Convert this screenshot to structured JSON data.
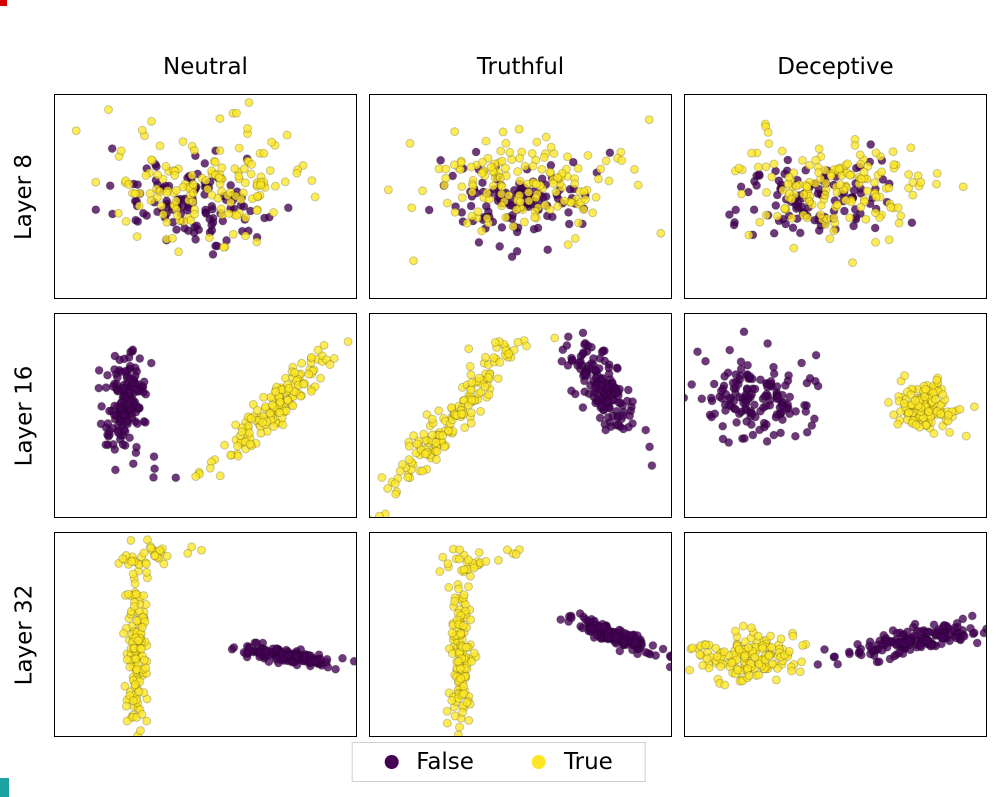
{
  "figure": {
    "columns": [
      "Neutral",
      "Truthful",
      "Deceptive"
    ],
    "rows": [
      "Layer 8",
      "Layer 16",
      "Layer 32"
    ]
  },
  "legend": {
    "items": [
      {
        "label": "False",
        "color": "#440154"
      },
      {
        "label": "True",
        "color": "#fde725"
      }
    ]
  },
  "artifacts": {
    "top_left_color": "#d40000",
    "bottom_left_color": "#1ba3a3"
  },
  "chart_data": {
    "type": "scatter",
    "title": "",
    "grid_cols": [
      "Neutral",
      "Truthful",
      "Deceptive"
    ],
    "grid_rows": [
      "Layer 8",
      "Layer 16",
      "Layer 32"
    ],
    "axes": {
      "ticks": false,
      "tick_labels": false,
      "grid": false
    },
    "legend_position": "bottom-center",
    "series_colors": {
      "False": "#440154",
      "True": "#fde725"
    },
    "marker": {
      "radius": 4,
      "fill_opacity": 0.78,
      "edge_opacity": 0.2
    },
    "panels": [
      {
        "row": "Layer 8",
        "col": "Neutral",
        "clusters": [
          {
            "series": "False",
            "n": 115,
            "cx": 0.46,
            "cy": 0.54,
            "sx": 0.135,
            "sy": 0.1,
            "angle": 0
          },
          {
            "series": "True",
            "n": 155,
            "cx": 0.5,
            "cy": 0.43,
            "sx": 0.165,
            "sy": 0.125,
            "angle": 0
          }
        ]
      },
      {
        "row": "Layer 8",
        "col": "Truthful",
        "clusters": [
          {
            "series": "False",
            "n": 115,
            "cx": 0.48,
            "cy": 0.52,
            "sx": 0.13,
            "sy": 0.095,
            "angle": 0
          },
          {
            "series": "True",
            "n": 155,
            "cx": 0.5,
            "cy": 0.44,
            "sx": 0.16,
            "sy": 0.12,
            "angle": 0
          }
        ]
      },
      {
        "row": "Layer 8",
        "col": "Deceptive",
        "clusters": [
          {
            "series": "False",
            "n": 115,
            "cx": 0.43,
            "cy": 0.5,
            "sx": 0.14,
            "sy": 0.1,
            "angle": 0
          },
          {
            "series": "True",
            "n": 155,
            "cx": 0.52,
            "cy": 0.46,
            "sx": 0.155,
            "sy": 0.12,
            "angle": 0
          }
        ]
      },
      {
        "row": "Layer 16",
        "col": "Neutral",
        "clusters": [
          {
            "series": "False",
            "n": 145,
            "cx": 0.235,
            "cy": 0.44,
            "sx": 0.032,
            "sy": 0.125,
            "angle": 6
          },
          {
            "series": "False",
            "n": 5,
            "cx": 0.33,
            "cy": 0.75,
            "sx": 0.05,
            "sy": 0.04,
            "angle": 0
          },
          {
            "series": "True",
            "n": 150,
            "cx": 0.73,
            "cy": 0.46,
            "sx": 0.17,
            "sy": 0.03,
            "angle": -58
          }
        ]
      },
      {
        "row": "Layer 16",
        "col": "Truthful",
        "clusters": [
          {
            "series": "True",
            "n": 150,
            "cx": 0.27,
            "cy": 0.52,
            "sx": 0.19,
            "sy": 0.032,
            "angle": -62
          },
          {
            "series": "True",
            "n": 14,
            "cx": 0.45,
            "cy": 0.17,
            "sx": 0.05,
            "sy": 0.03,
            "angle": -20
          },
          {
            "series": "False",
            "n": 145,
            "cx": 0.77,
            "cy": 0.37,
            "sx": 0.115,
            "sy": 0.038,
            "angle": 70
          }
        ]
      },
      {
        "row": "Layer 16",
        "col": "Deceptive",
        "clusters": [
          {
            "series": "False",
            "n": 150,
            "cx": 0.23,
            "cy": 0.41,
            "sx": 0.095,
            "sy": 0.105,
            "angle": 0
          },
          {
            "series": "True",
            "n": 150,
            "cx": 0.8,
            "cy": 0.45,
            "sx": 0.048,
            "sy": 0.062,
            "angle": 0
          }
        ]
      },
      {
        "row": "Layer 32",
        "col": "Neutral",
        "clusters": [
          {
            "series": "True",
            "n": 145,
            "cx": 0.27,
            "cy": 0.56,
            "sx": 0.018,
            "sy": 0.23,
            "angle": 0
          },
          {
            "series": "True",
            "n": 24,
            "cx": 0.31,
            "cy": 0.12,
            "sx": 0.05,
            "sy": 0.03,
            "angle": -10
          },
          {
            "series": "True",
            "n": 3,
            "cx": 0.45,
            "cy": 0.08,
            "sx": 0.03,
            "sy": 0.02,
            "angle": 0
          },
          {
            "series": "False",
            "n": 135,
            "cx": 0.78,
            "cy": 0.61,
            "sx": 0.08,
            "sy": 0.018,
            "angle": 14
          }
        ]
      },
      {
        "row": "Layer 32",
        "col": "Truthful",
        "clusters": [
          {
            "series": "True",
            "n": 145,
            "cx": 0.3,
            "cy": 0.6,
            "sx": 0.018,
            "sy": 0.22,
            "angle": 0
          },
          {
            "series": "True",
            "n": 24,
            "cx": 0.34,
            "cy": 0.14,
            "sx": 0.045,
            "sy": 0.03,
            "angle": -10
          },
          {
            "series": "True",
            "n": 3,
            "cx": 0.48,
            "cy": 0.1,
            "sx": 0.03,
            "sy": 0.02,
            "angle": 0
          },
          {
            "series": "False",
            "n": 135,
            "cx": 0.8,
            "cy": 0.5,
            "sx": 0.085,
            "sy": 0.02,
            "angle": 32
          }
        ]
      },
      {
        "row": "Layer 32",
        "col": "Deceptive",
        "clusters": [
          {
            "series": "True",
            "n": 155,
            "cx": 0.21,
            "cy": 0.61,
            "sx": 0.088,
            "sy": 0.055,
            "angle": 0
          },
          {
            "series": "False",
            "n": 155,
            "cx": 0.76,
            "cy": 0.53,
            "sx": 0.115,
            "sy": 0.028,
            "angle": -16
          }
        ]
      }
    ]
  }
}
